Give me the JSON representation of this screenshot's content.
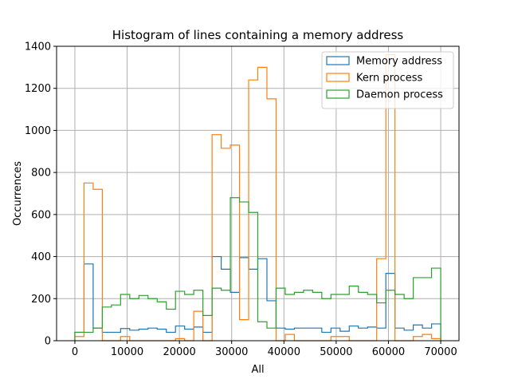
{
  "chart_data": {
    "type": "histogram",
    "title": "Histogram of lines containing a memory address",
    "xlabel": "All",
    "ylabel": "Occurrences",
    "xlim": [
      -3500,
      73500
    ],
    "ylim": [
      0,
      1400
    ],
    "xticks": [
      0,
      10000,
      20000,
      30000,
      40000,
      50000,
      60000,
      70000
    ],
    "yticks": [
      0,
      200,
      400,
      600,
      800,
      1000,
      1200,
      1400
    ],
    "grid": true,
    "legend_position": "top-right",
    "bin_edges": [
      0,
      1750,
      3500,
      5250,
      7000,
      8750,
      10500,
      12250,
      14000,
      15750,
      17500,
      19250,
      21000,
      22750,
      24500,
      26250,
      28000,
      29750,
      31500,
      33250,
      35000,
      36750,
      38500,
      40250,
      42000,
      43750,
      45500,
      47250,
      49000,
      50750,
      52500,
      54250,
      56000,
      57750,
      59500,
      61250,
      63000,
      64750,
      66500,
      68250,
      70000
    ],
    "series": [
      {
        "name": "Memory address",
        "color": "#1f77b4",
        "values": [
          40,
          365,
          60,
          40,
          40,
          58,
          50,
          55,
          60,
          55,
          40,
          70,
          55,
          65,
          40,
          400,
          340,
          230,
          395,
          340,
          390,
          190,
          60,
          55,
          60,
          60,
          60,
          40,
          60,
          45,
          70,
          60,
          65,
          60,
          320,
          60,
          50,
          75,
          60,
          80
        ]
      },
      {
        "name": "Kern process",
        "color": "#ff7f0e",
        "values": [
          20,
          750,
          720,
          0,
          0,
          20,
          0,
          0,
          0,
          0,
          0,
          10,
          0,
          140,
          0,
          980,
          915,
          930,
          100,
          1240,
          1300,
          1150,
          0,
          30,
          0,
          0,
          0,
          0,
          20,
          20,
          0,
          0,
          0,
          390,
          1360,
          0,
          0,
          20,
          30,
          10
        ]
      },
      {
        "name": "Daemon process",
        "color": "#2ca02c",
        "values": [
          40,
          40,
          60,
          160,
          170,
          220,
          200,
          215,
          200,
          185,
          150,
          235,
          220,
          240,
          120,
          250,
          240,
          680,
          660,
          610,
          90,
          60,
          250,
          220,
          230,
          240,
          230,
          200,
          220,
          220,
          260,
          230,
          220,
          180,
          240,
          220,
          200,
          300,
          300,
          345
        ]
      }
    ]
  }
}
